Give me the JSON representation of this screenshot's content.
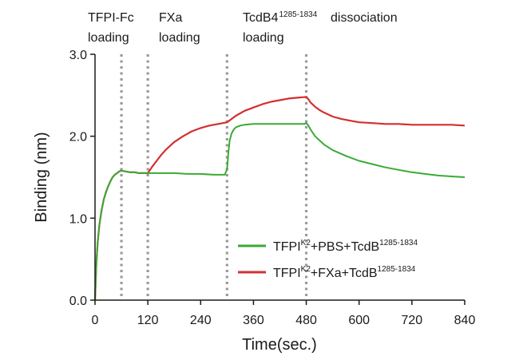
{
  "chart_data": {
    "type": "line",
    "xlabel": "Time(sec.)",
    "ylabel": "Binding (nm)",
    "xlim": [
      0,
      840
    ],
    "ylim": [
      0.0,
      3.0
    ],
    "x_ticks": [
      0,
      120,
      240,
      360,
      480,
      600,
      720,
      840
    ],
    "y_ticks": [
      0.0,
      1.0,
      2.0,
      3.0
    ],
    "x_tick_labels": [
      "0",
      "120",
      "240",
      "360",
      "480",
      "600",
      "720",
      "840"
    ],
    "y_tick_labels": [
      "0.0",
      "1.0",
      "2.0",
      "3.0"
    ],
    "grid": false,
    "legend_position": "lower-right",
    "phase_boundaries": [
      60,
      120,
      300,
      480
    ],
    "phase_labels": [
      {
        "line1": "TFPI-Fc",
        "line2": "loading",
        "sup": ""
      },
      {
        "line1": "FXa",
        "line2": "loading",
        "sup": ""
      },
      {
        "line1": "TcdB4",
        "line2": "loading",
        "sup": "1285-1834"
      },
      {
        "line1": "dissociation",
        "line2": "",
        "sup": ""
      }
    ],
    "series": [
      {
        "name": "TFPI K2 + PBS + TcdB 1285-1834",
        "legend_parts": [
          "TFPI",
          "K2",
          "+PBS+TcdB",
          "1285-1834"
        ],
        "color": "#3aaa35",
        "x": [
          0,
          3,
          6,
          10,
          15,
          20,
          25,
          30,
          35,
          40,
          45,
          50,
          55,
          60,
          70,
          80,
          90,
          100,
          110,
          120,
          150,
          180,
          210,
          240,
          270,
          295,
          300,
          303,
          306,
          310,
          315,
          320,
          330,
          340,
          360,
          390,
          420,
          450,
          475,
          480,
          485,
          490,
          500,
          520,
          540,
          570,
          600,
          630,
          660,
          690,
          720,
          750,
          780,
          810,
          840
        ],
        "y": [
          0,
          0.45,
          0.7,
          0.92,
          1.1,
          1.23,
          1.32,
          1.39,
          1.45,
          1.5,
          1.53,
          1.55,
          1.57,
          1.58,
          1.57,
          1.56,
          1.56,
          1.55,
          1.55,
          1.55,
          1.55,
          1.55,
          1.54,
          1.54,
          1.53,
          1.53,
          1.6,
          1.8,
          1.95,
          2.03,
          2.08,
          2.11,
          2.13,
          2.14,
          2.15,
          2.15,
          2.15,
          2.15,
          2.15,
          2.16,
          2.13,
          2.08,
          2.0,
          1.9,
          1.83,
          1.76,
          1.7,
          1.66,
          1.62,
          1.59,
          1.56,
          1.54,
          1.52,
          1.51,
          1.5
        ]
      },
      {
        "name": "TFPI K2 + FXa + TcdB 1285-1834",
        "legend_parts": [
          "TFPI",
          "K2",
          "+FXa+TcdB",
          "1285-1834"
        ],
        "color": "#d32f2f",
        "x": [
          0,
          3,
          6,
          10,
          15,
          20,
          25,
          30,
          35,
          40,
          45,
          50,
          55,
          60,
          70,
          80,
          90,
          100,
          110,
          120,
          130,
          140,
          150,
          160,
          180,
          200,
          220,
          240,
          260,
          280,
          300,
          320,
          340,
          360,
          380,
          400,
          420,
          440,
          460,
          480,
          485,
          490,
          500,
          510,
          520,
          540,
          560,
          580,
          600,
          630,
          660,
          690,
          720,
          750,
          780,
          810,
          840
        ],
        "y": [
          0,
          0.45,
          0.7,
          0.92,
          1.1,
          1.23,
          1.32,
          1.39,
          1.45,
          1.5,
          1.53,
          1.55,
          1.57,
          1.58,
          1.57,
          1.56,
          1.56,
          1.55,
          1.55,
          1.55,
          1.63,
          1.7,
          1.77,
          1.83,
          1.93,
          2.0,
          2.06,
          2.1,
          2.13,
          2.15,
          2.17,
          2.25,
          2.31,
          2.35,
          2.39,
          2.42,
          2.44,
          2.46,
          2.47,
          2.48,
          2.45,
          2.41,
          2.36,
          2.32,
          2.29,
          2.24,
          2.21,
          2.19,
          2.17,
          2.16,
          2.15,
          2.15,
          2.14,
          2.14,
          2.14,
          2.14,
          2.13
        ]
      }
    ]
  }
}
